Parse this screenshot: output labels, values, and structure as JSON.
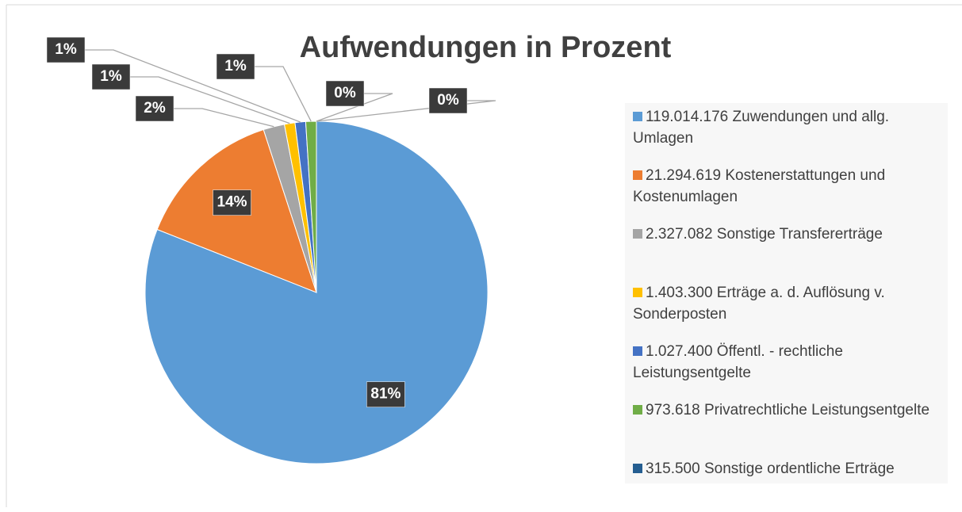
{
  "chart_data": {
    "type": "pie",
    "title": "Aufwendungen in Prozent",
    "categories": [
      "119.014.176 Zuwendungen und allg. Umlagen",
      "21.294.619 Kostenerstattungen und Kostenumlagen",
      "2.327.082 Sonstige Transfererträge",
      "1.403.300 Erträge a. d. Auflösung v. Sonderposten",
      "1.027.400 Öffentl. - rechtliche Leistungsentgelte",
      "973.618 Privatrechtliche Leistungsentgelte",
      "315.500 Sonstige ordentliche Erträge",
      null
    ],
    "values": [
      81,
      14,
      2,
      1,
      1,
      1,
      0,
      0
    ],
    "value_labels": [
      "81%",
      "14%",
      "2%",
      "1%",
      "1%",
      "1%",
      "0%",
      "0%"
    ],
    "colors": [
      "#5b9bd5",
      "#ed7d31",
      "#a5a5a5",
      "#ffc000",
      "#4472c4",
      "#70ad47",
      "#255e91",
      "#264478"
    ],
    "legend": "right"
  }
}
